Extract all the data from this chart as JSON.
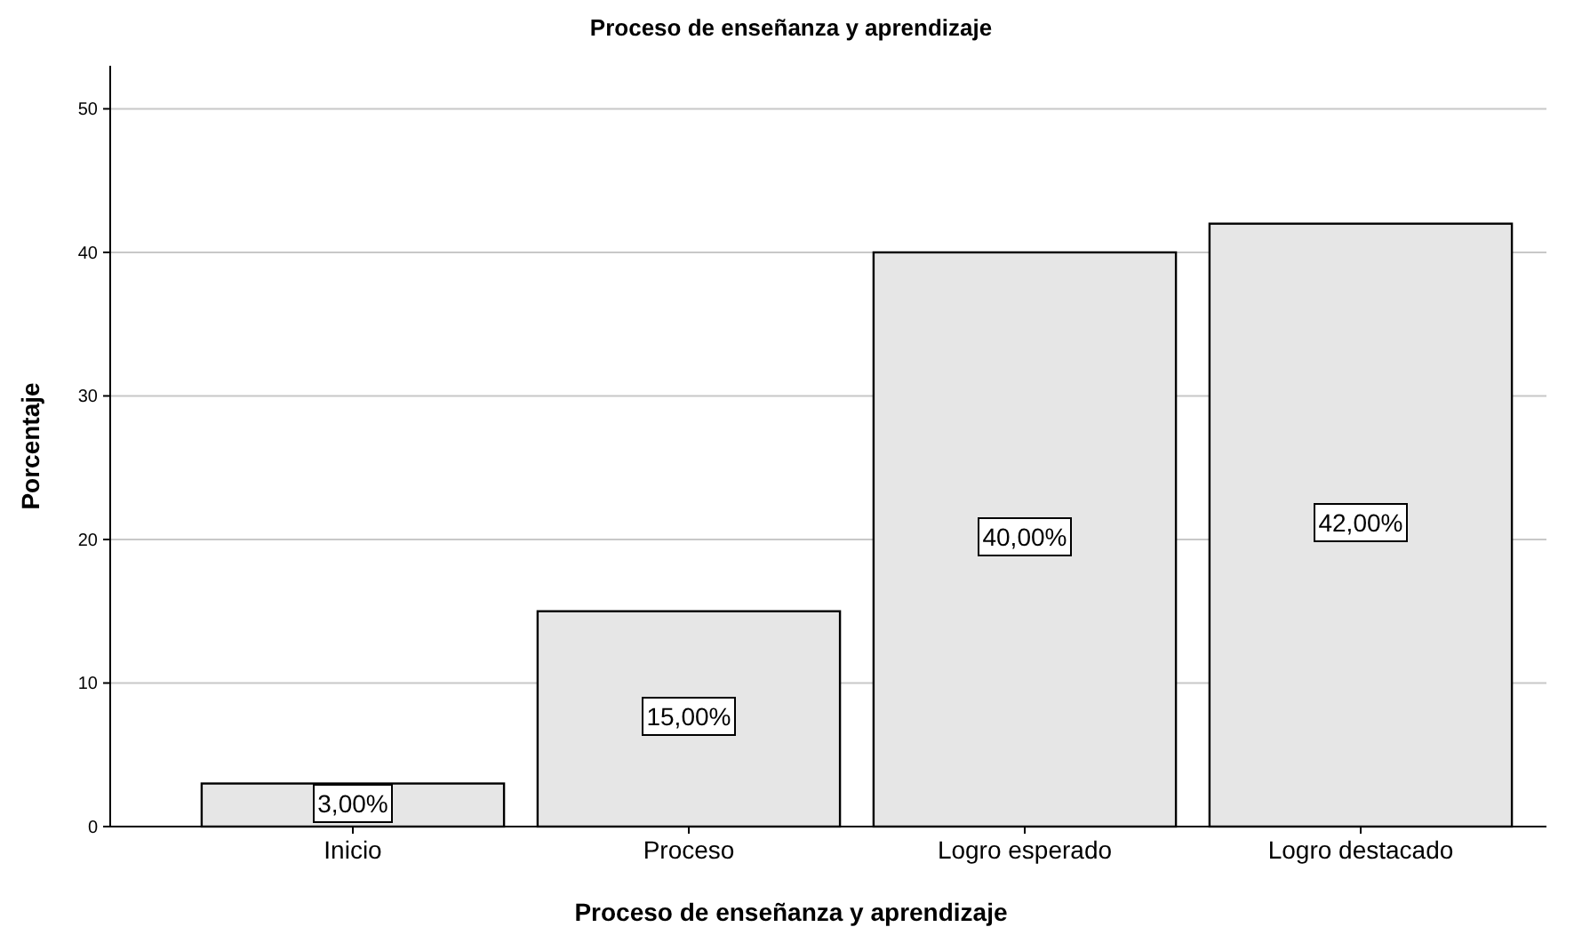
{
  "chart_data": {
    "type": "bar",
    "title": "Proceso de enseñanza y aprendizaje",
    "xlabel": "Proceso de enseñanza y aprendizaje",
    "ylabel": "Porcentaje",
    "categories": [
      "Inicio",
      "Proceso",
      "Logro esperado",
      "Logro destacado"
    ],
    "values": [
      3,
      15,
      40,
      42
    ],
    "value_labels": [
      "3,00%",
      "15,00%",
      "40,00%",
      "42,00%"
    ],
    "color": "#e6e6e6",
    "ylim": [
      0,
      53
    ],
    "yticks": [
      0,
      10,
      20,
      30,
      40,
      50
    ],
    "grid": "y"
  }
}
